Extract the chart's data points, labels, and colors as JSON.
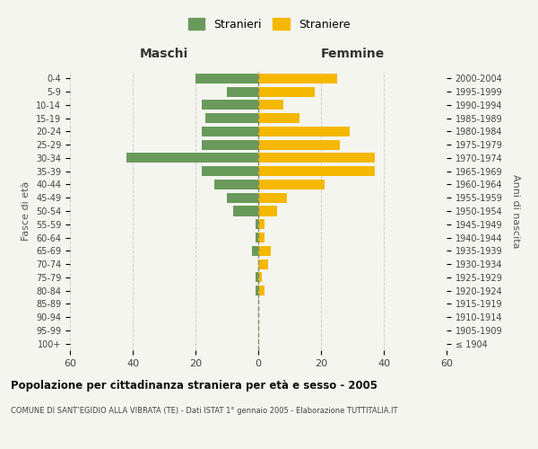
{
  "age_groups": [
    "100+",
    "95-99",
    "90-94",
    "85-89",
    "80-84",
    "75-79",
    "70-74",
    "65-69",
    "60-64",
    "55-59",
    "50-54",
    "45-49",
    "40-44",
    "35-39",
    "30-34",
    "25-29",
    "20-24",
    "15-19",
    "10-14",
    "5-9",
    "0-4"
  ],
  "birth_years": [
    "≤ 1904",
    "1905-1909",
    "1910-1914",
    "1915-1919",
    "1920-1924",
    "1925-1929",
    "1930-1934",
    "1935-1939",
    "1940-1944",
    "1945-1949",
    "1950-1954",
    "1955-1959",
    "1960-1964",
    "1965-1969",
    "1970-1974",
    "1975-1979",
    "1980-1984",
    "1985-1989",
    "1990-1994",
    "1995-1999",
    "2000-2004"
  ],
  "males": [
    0,
    0,
    0,
    0,
    1,
    1,
    0,
    2,
    1,
    1,
    8,
    10,
    14,
    18,
    42,
    18,
    18,
    17,
    18,
    10,
    20
  ],
  "females": [
    0,
    0,
    0,
    0,
    2,
    1,
    3,
    4,
    2,
    2,
    6,
    9,
    21,
    37,
    37,
    26,
    29,
    13,
    8,
    18,
    25
  ],
  "male_color": "#6a9a5b",
  "female_color": "#f5b800",
  "background_color": "#f5f5f0",
  "grid_color": "#cccccc",
  "center_line_color": "#888866",
  "xlim": 60,
  "title": "Popolazione per cittadinanza straniera per età e sesso - 2005",
  "subtitle": "COMUNE DI SANT’EGIDIO ALLA VIBRATA (TE) - Dati ISTAT 1° gennaio 2005 - Elaborazione TUTTITALIA.IT",
  "xlabel_left": "Maschi",
  "xlabel_right": "Femmine",
  "ylabel_left": "Fasce di età",
  "ylabel_right": "Anni di nascita",
  "legend_male": "Stranieri",
  "legend_female": "Straniere",
  "bar_height": 0.75
}
